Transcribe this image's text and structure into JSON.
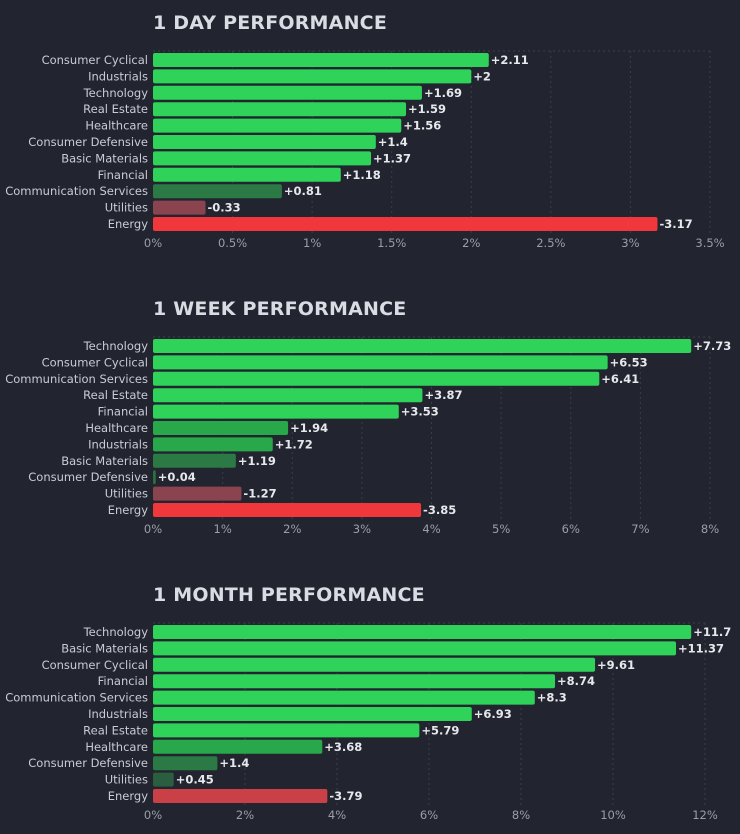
{
  "colors": {
    "background": "#22252f",
    "bright_green": "#2fd35a",
    "medium_green": "#28a84a",
    "dark_green": "#2b6e40",
    "bright_red": "#f0383c",
    "medium_red": "#c94146",
    "dark_red": "#8a4450"
  },
  "chart_data": [
    {
      "type": "bar",
      "orientation": "horizontal",
      "title": "1 DAY PERFORMANCE",
      "categories": [
        "Consumer Cyclical",
        "Industrials",
        "Technology",
        "Real Estate",
        "Healthcare",
        "Consumer Defensive",
        "Basic Materials",
        "Financial",
        "Communication Services",
        "Utilities",
        "Energy"
      ],
      "values": [
        2.11,
        2,
        1.69,
        1.59,
        1.56,
        1.4,
        1.37,
        1.18,
        0.81,
        -0.33,
        -3.17
      ],
      "value_labels": [
        "+2.11",
        "+2",
        "+1.69",
        "+1.59",
        "+1.56",
        "+1.4",
        "+1.37",
        "+1.18",
        "+0.81",
        "-0.33",
        "-3.17"
      ],
      "bar_colors": [
        "#2fd35a",
        "#2fd35a",
        "#2fd35a",
        "#2fd35a",
        "#2fd35a",
        "#2fd35a",
        "#2fd35a",
        "#2fd35a",
        "#2b7a45",
        "#8a4450",
        "#f0383c"
      ],
      "xlim": [
        0,
        3.5
      ],
      "ticks": [
        "0%",
        "0.5%",
        "1%",
        "1.5%",
        "2%",
        "2.5%",
        "3%",
        "3.5%"
      ],
      "note": "bar length shows absolute change"
    },
    {
      "type": "bar",
      "orientation": "horizontal",
      "title": "1 WEEK PERFORMANCE",
      "categories": [
        "Technology",
        "Consumer Cyclical",
        "Communication Services",
        "Real Estate",
        "Financial",
        "Healthcare",
        "Industrials",
        "Basic Materials",
        "Consumer Defensive",
        "Utilities",
        "Energy"
      ],
      "values": [
        7.73,
        6.53,
        6.41,
        3.87,
        3.53,
        1.94,
        1.72,
        1.19,
        0.04,
        -1.27,
        -3.85
      ],
      "value_labels": [
        "+7.73",
        "+6.53",
        "+6.41",
        "+3.87",
        "+3.53",
        "+1.94",
        "+1.72",
        "+1.19",
        "+0.04",
        "-1.27",
        "-3.85"
      ],
      "bar_colors": [
        "#2fd35a",
        "#2fd35a",
        "#2fd35a",
        "#2fd35a",
        "#2fd35a",
        "#28a84a",
        "#28a84a",
        "#2b7a45",
        "#2b6e40",
        "#8a4450",
        "#f0383c"
      ],
      "xlim": [
        0,
        8
      ],
      "ticks": [
        "0%",
        "1%",
        "2%",
        "3%",
        "4%",
        "5%",
        "6%",
        "7%",
        "8%"
      ],
      "note": "bar length shows absolute change"
    },
    {
      "type": "bar",
      "orientation": "horizontal",
      "title": "1 MONTH PERFORMANCE",
      "categories": [
        "Technology",
        "Basic Materials",
        "Consumer Cyclical",
        "Financial",
        "Communication Services",
        "Industrials",
        "Real Estate",
        "Healthcare",
        "Consumer Defensive",
        "Utilities",
        "Energy"
      ],
      "values": [
        11.7,
        11.37,
        9.61,
        8.74,
        8.3,
        6.93,
        5.79,
        3.68,
        1.4,
        0.45,
        -3.79
      ],
      "value_labels": [
        "+11.7",
        "+11.37",
        "+9.61",
        "+8.74",
        "+8.3",
        "+6.93",
        "+5.79",
        "+3.68",
        "+1.4",
        "+0.45",
        "-3.79"
      ],
      "bar_colors": [
        "#2fd35a",
        "#2fd35a",
        "#2fd35a",
        "#2fd35a",
        "#2fd35a",
        "#2fd35a",
        "#2fd35a",
        "#28a84a",
        "#2b7a45",
        "#2b5e3f",
        "#c94146"
      ],
      "xlim": [
        0,
        12
      ],
      "ticks": [
        "0%",
        "2%",
        "4%",
        "6%",
        "8%",
        "10%",
        "12%"
      ],
      "note": "bar length shows absolute change"
    }
  ]
}
